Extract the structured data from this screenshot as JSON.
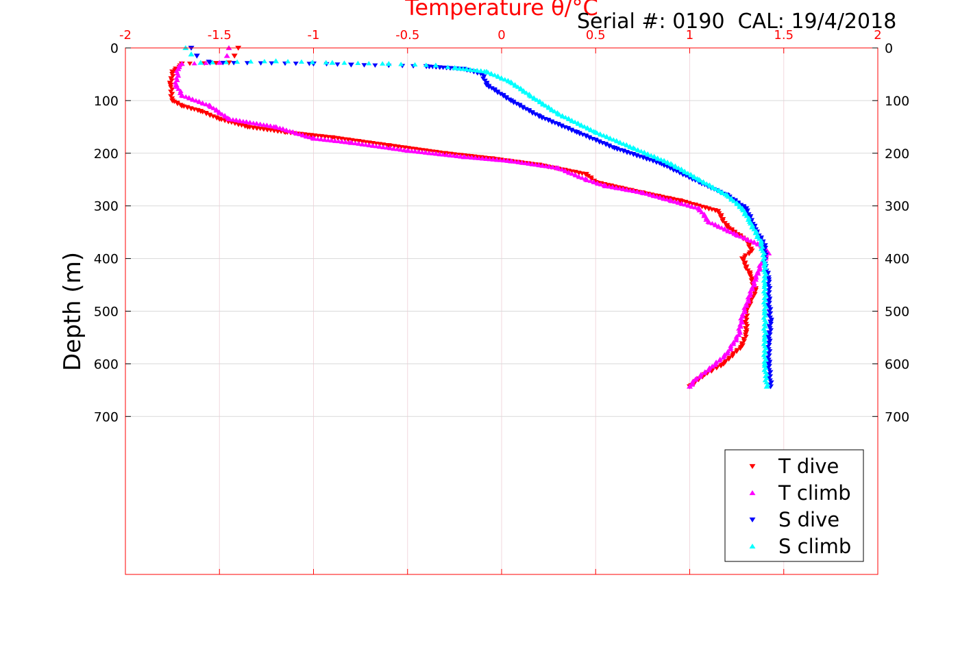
{
  "serial_label": "Serial #: 0190  CAL: 19/4/2018",
  "chart_data": {
    "type": "scatter",
    "title": "Temperature θ/°C",
    "xlabel": "",
    "ylabel": "Depth (m)",
    "xlim": [
      -2,
      2
    ],
    "ylim": [
      0,
      1000
    ],
    "y_reversed": true,
    "x_ticks": [
      "-2",
      "-1.5",
      "-1",
      "-0.5",
      "0",
      "0.5",
      "1",
      "1.5",
      "2"
    ],
    "y_ticks": [
      "0",
      "100",
      "200",
      "300",
      "400",
      "500",
      "600",
      "700"
    ],
    "grid": true,
    "legend_position": "bottom-right",
    "colors": {
      "top_axis": "#ff0000",
      "grid": "#d9d9d9",
      "box": "#ff0000"
    },
    "series": [
      {
        "name": "T dive",
        "color": "#ff0000",
        "marker": "triangle-down",
        "points": [
          [
            -1.4,
            0
          ],
          [
            -1.42,
            15
          ],
          [
            -1.45,
            28
          ],
          [
            -1.7,
            30
          ],
          [
            -1.75,
            45
          ],
          [
            -1.76,
            70
          ],
          [
            -1.75,
            100
          ],
          [
            -1.7,
            110
          ],
          [
            -1.6,
            120
          ],
          [
            -1.5,
            135
          ],
          [
            -1.35,
            150
          ],
          [
            -1.15,
            160
          ],
          [
            -0.9,
            170
          ],
          [
            -0.6,
            185
          ],
          [
            -0.3,
            200
          ],
          [
            -0.05,
            210
          ],
          [
            0.2,
            222
          ],
          [
            0.45,
            240
          ],
          [
            0.5,
            255
          ],
          [
            0.75,
            275
          ],
          [
            0.95,
            290
          ],
          [
            1.15,
            310
          ],
          [
            1.2,
            340
          ],
          [
            1.3,
            365
          ],
          [
            1.33,
            385
          ],
          [
            1.28,
            400
          ],
          [
            1.32,
            430
          ],
          [
            1.35,
            460
          ],
          [
            1.3,
            500
          ],
          [
            1.3,
            540
          ],
          [
            1.28,
            565
          ],
          [
            1.18,
            600
          ],
          [
            1.08,
            620
          ],
          [
            1.0,
            643
          ]
        ]
      },
      {
        "name": "T climb",
        "color": "#ff00ff",
        "marker": "triangle-up",
        "points": [
          [
            -1.45,
            0
          ],
          [
            -1.46,
            15
          ],
          [
            -1.5,
            28
          ],
          [
            -1.7,
            30
          ],
          [
            -1.72,
            40
          ],
          [
            -1.73,
            70
          ],
          [
            -1.7,
            90
          ],
          [
            -1.55,
            110
          ],
          [
            -1.45,
            135
          ],
          [
            -1.2,
            150
          ],
          [
            -1.0,
            172
          ],
          [
            -0.8,
            180
          ],
          [
            -0.5,
            195
          ],
          [
            -0.2,
            207
          ],
          [
            0.05,
            215
          ],
          [
            0.3,
            228
          ],
          [
            0.45,
            250
          ],
          [
            0.55,
            262
          ],
          [
            0.75,
            275
          ],
          [
            0.9,
            290
          ],
          [
            1.05,
            305
          ],
          [
            1.1,
            330
          ],
          [
            1.25,
            355
          ],
          [
            1.38,
            375
          ],
          [
            1.42,
            390
          ],
          [
            1.38,
            410
          ],
          [
            1.35,
            440
          ],
          [
            1.32,
            470
          ],
          [
            1.28,
            510
          ],
          [
            1.26,
            545
          ],
          [
            1.2,
            580
          ],
          [
            1.12,
            605
          ],
          [
            1.03,
            630
          ],
          [
            1.0,
            643
          ]
        ]
      },
      {
        "name": "S dive",
        "color": "#0000ff",
        "marker": "triangle-down",
        "points": [
          [
            -1.65,
            0
          ],
          [
            -1.62,
            15
          ],
          [
            -1.55,
            28
          ],
          [
            -1.0,
            30
          ],
          [
            -0.8,
            32
          ],
          [
            -0.4,
            35
          ],
          [
            -0.2,
            40
          ],
          [
            -0.1,
            50
          ],
          [
            -0.08,
            70
          ],
          [
            0.05,
            100
          ],
          [
            0.2,
            130
          ],
          [
            0.4,
            160
          ],
          [
            0.6,
            190
          ],
          [
            0.85,
            220
          ],
          [
            1.05,
            255
          ],
          [
            1.2,
            280
          ],
          [
            1.3,
            305
          ],
          [
            1.35,
            345
          ],
          [
            1.4,
            375
          ],
          [
            1.4,
            410
          ],
          [
            1.42,
            440
          ],
          [
            1.42,
            480
          ],
          [
            1.43,
            520
          ],
          [
            1.42,
            560
          ],
          [
            1.42,
            600
          ],
          [
            1.43,
            643
          ]
        ]
      },
      {
        "name": "S climb",
        "color": "#00ffff",
        "marker": "triangle-up",
        "points": [
          [
            -1.68,
            0
          ],
          [
            -1.65,
            12
          ],
          [
            -1.6,
            28
          ],
          [
            -1.2,
            25
          ],
          [
            -0.9,
            28
          ],
          [
            -0.6,
            30
          ],
          [
            -0.35,
            33
          ],
          [
            -0.25,
            38
          ],
          [
            -0.08,
            45
          ],
          [
            0.05,
            65
          ],
          [
            0.15,
            90
          ],
          [
            0.3,
            125
          ],
          [
            0.5,
            160
          ],
          [
            0.7,
            190
          ],
          [
            0.9,
            220
          ],
          [
            1.05,
            250
          ],
          [
            1.2,
            280
          ],
          [
            1.28,
            305
          ],
          [
            1.32,
            330
          ],
          [
            1.38,
            370
          ],
          [
            1.4,
            410
          ],
          [
            1.4,
            450
          ],
          [
            1.4,
            500
          ],
          [
            1.4,
            550
          ],
          [
            1.4,
            600
          ],
          [
            1.41,
            643
          ]
        ]
      }
    ]
  }
}
